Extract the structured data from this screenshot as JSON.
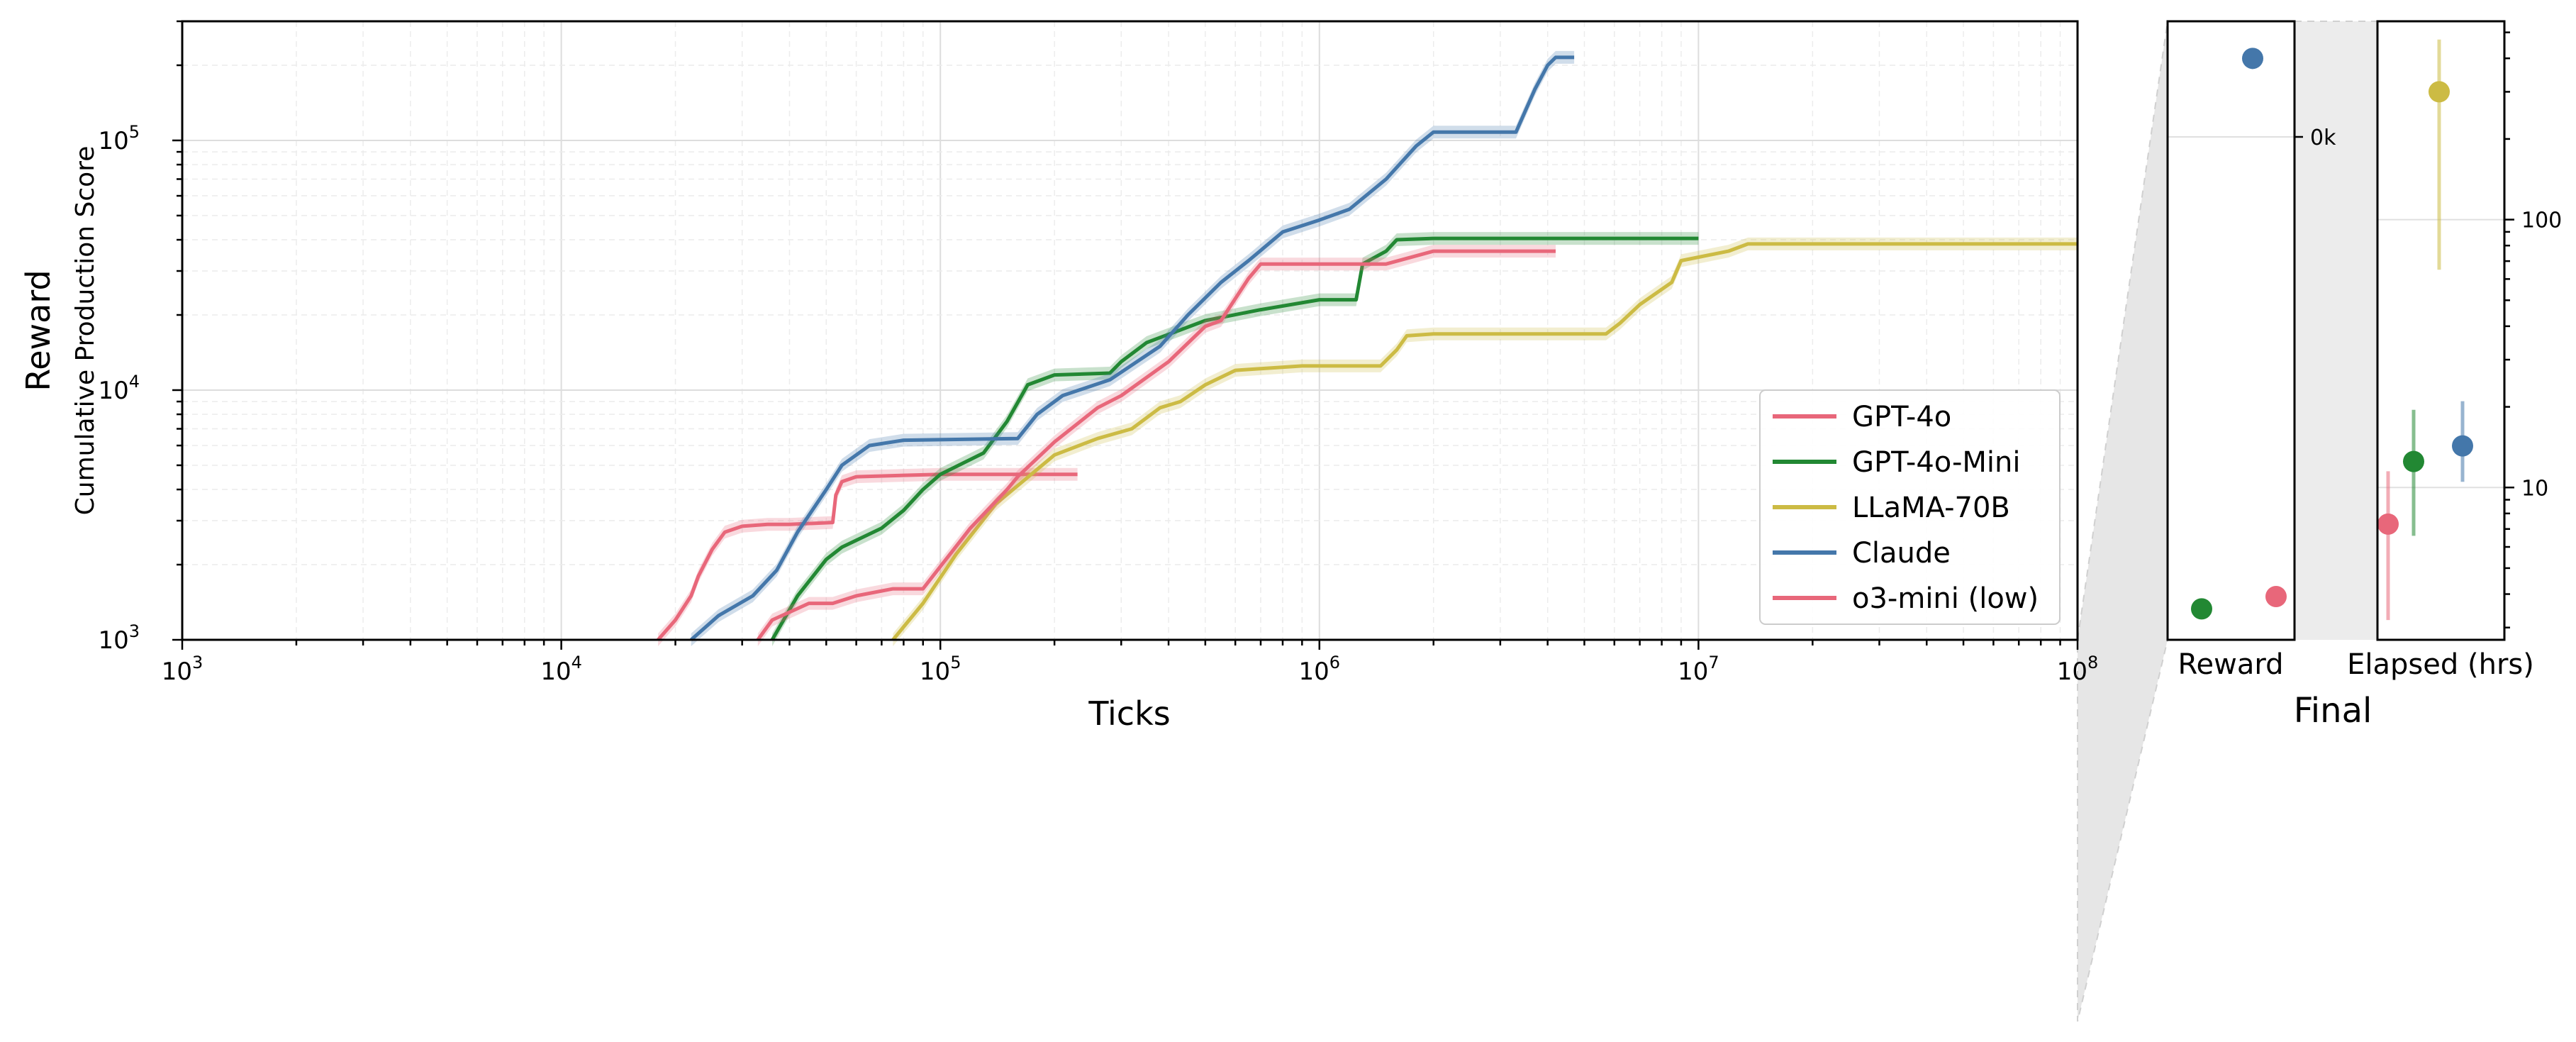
{
  "chart_data": [
    {
      "type": "line",
      "xlabel": "Ticks",
      "ylabel": "Reward",
      "ylabel_secondary": "Cumulative Production Score",
      "x_scale": "log",
      "y_scale": "log",
      "xlim": [
        1000,
        100000000
      ],
      "ylim": [
        1000,
        300000
      ],
      "x_tick_labels": [
        {
          "value": 1000,
          "base": "10",
          "exp": "3"
        },
        {
          "value": 10000,
          "base": "10",
          "exp": "4"
        },
        {
          "value": 100000,
          "base": "10",
          "exp": "5"
        },
        {
          "value": 1000000,
          "base": "10",
          "exp": "6"
        },
        {
          "value": 10000000,
          "base": "10",
          "exp": "7"
        },
        {
          "value": 100000000,
          "base": "10",
          "exp": "8"
        }
      ],
      "y_tick_labels": [
        {
          "value": 1000,
          "base": "10",
          "exp": "3"
        },
        {
          "value": 10000,
          "base": "10",
          "exp": "4"
        },
        {
          "value": 100000,
          "base": "10",
          "exp": "5"
        }
      ],
      "grid": true,
      "legend_position": "lower-right",
      "series": [
        {
          "name": "GPT-4o",
          "color": "#e8677a",
          "band": true,
          "points": [
            [
              18000,
              1000
            ],
            [
              20000,
              1200
            ],
            [
              22000,
              1500
            ],
            [
              23000,
              1800
            ],
            [
              25000,
              2300
            ],
            [
              27000,
              2700
            ],
            [
              30000,
              2850
            ],
            [
              35000,
              2900
            ],
            [
              40000,
              2900
            ],
            [
              52000,
              2950
            ],
            [
              53000,
              3800
            ],
            [
              55000,
              4300
            ],
            [
              60000,
              4500
            ],
            [
              100000,
              4600
            ],
            [
              230000,
              4600
            ]
          ]
        },
        {
          "name": "GPT-4o-Mini",
          "color": "#228833",
          "band": true,
          "points": [
            [
              36000,
              1000
            ],
            [
              42000,
              1500
            ],
            [
              50000,
              2100
            ],
            [
              55000,
              2350
            ],
            [
              70000,
              2800
            ],
            [
              80000,
              3300
            ],
            [
              90000,
              4000
            ],
            [
              100000,
              4600
            ],
            [
              130000,
              5600
            ],
            [
              150000,
              7500
            ],
            [
              170000,
              10500
            ],
            [
              200000,
              11500
            ],
            [
              280000,
              11700
            ],
            [
              300000,
              13000
            ],
            [
              350000,
              15500
            ],
            [
              500000,
              19000
            ],
            [
              700000,
              21000
            ],
            [
              1000000,
              23000
            ],
            [
              1250000,
              23000
            ],
            [
              1300000,
              32000
            ],
            [
              1500000,
              36000
            ],
            [
              1600000,
              40000
            ],
            [
              2000000,
              40500
            ],
            [
              10000000,
              40500
            ]
          ]
        },
        {
          "name": "LLaMA-70B",
          "color": "#ccbb44",
          "band": true,
          "points": [
            [
              75000,
              1000
            ],
            [
              90000,
              1400
            ],
            [
              110000,
              2200
            ],
            [
              140000,
              3500
            ],
            [
              200000,
              5500
            ],
            [
              260000,
              6400
            ],
            [
              320000,
              7000
            ],
            [
              380000,
              8500
            ],
            [
              430000,
              9000
            ],
            [
              500000,
              10500
            ],
            [
              600000,
              12000
            ],
            [
              900000,
              12500
            ],
            [
              1450000,
              12500
            ],
            [
              1600000,
              14500
            ],
            [
              1700000,
              16500
            ],
            [
              2000000,
              16800
            ],
            [
              5700000,
              16800
            ],
            [
              6200000,
              18500
            ],
            [
              7000000,
              22000
            ],
            [
              8500000,
              27000
            ],
            [
              9000000,
              33000
            ],
            [
              12000000,
              36000
            ],
            [
              13500000,
              38500
            ],
            [
              100000000,
              38500
            ]
          ]
        },
        {
          "name": "Claude",
          "color": "#4477aa",
          "band": true,
          "points": [
            [
              22000,
              1000
            ],
            [
              26000,
              1250
            ],
            [
              32000,
              1500
            ],
            [
              37000,
              1900
            ],
            [
              42000,
              2700
            ],
            [
              50000,
              4000
            ],
            [
              55000,
              5000
            ],
            [
              65000,
              6000
            ],
            [
              80000,
              6300
            ],
            [
              160000,
              6400
            ],
            [
              180000,
              8000
            ],
            [
              210000,
              9500
            ],
            [
              280000,
              11000
            ],
            [
              380000,
              15000
            ],
            [
              450000,
              20000
            ],
            [
              550000,
              27000
            ],
            [
              650000,
              33000
            ],
            [
              800000,
              43000
            ],
            [
              1000000,
              48000
            ],
            [
              1200000,
              53000
            ],
            [
              1500000,
              70000
            ],
            [
              1800000,
              95000
            ],
            [
              2000000,
              108000
            ],
            [
              3300000,
              108000
            ],
            [
              3700000,
              160000
            ],
            [
              4000000,
              200000
            ],
            [
              4200000,
              215000
            ],
            [
              4700000,
              215000
            ]
          ]
        },
        {
          "name": "o3-mini (low)",
          "color": "#e8677a",
          "band": true,
          "points": [
            [
              33000,
              1000
            ],
            [
              36000,
              1200
            ],
            [
              45000,
              1400
            ],
            [
              52000,
              1400
            ],
            [
              60000,
              1500
            ],
            [
              75000,
              1600
            ],
            [
              90000,
              1600
            ],
            [
              120000,
              2800
            ],
            [
              150000,
              4000
            ],
            [
              160000,
              4500
            ],
            [
              200000,
              6200
            ],
            [
              260000,
              8500
            ],
            [
              300000,
              9500
            ],
            [
              400000,
              13000
            ],
            [
              500000,
              18000
            ],
            [
              550000,
              19000
            ],
            [
              650000,
              28000
            ],
            [
              700000,
              32000
            ],
            [
              1500000,
              32000
            ],
            [
              2000000,
              36000
            ],
            [
              4200000,
              36000
            ]
          ]
        }
      ]
    },
    {
      "type": "scatter",
      "subplot": "Reward",
      "xlabel": "Reward",
      "y_tick_labels": [
        "0k"
      ],
      "points": [
        {
          "series": "Claude",
          "color": "#4477aa",
          "level": 0.94
        },
        {
          "series": "GPT-4o-Mini",
          "color": "#228833",
          "level": 0.05
        },
        {
          "series": "GPT-4o",
          "color": "#e8677a",
          "level": 0.07
        }
      ]
    },
    {
      "type": "scatter",
      "subplot": "Elapsed (hrs)",
      "xlabel": "Elapsed (hrs)",
      "y_scale": "log",
      "ylim": [
        2.7,
        550
      ],
      "y_tick_labels": [
        "100",
        "10"
      ],
      "points": [
        {
          "series": "GPT-4o",
          "color": "#e8677a",
          "value": 7.3,
          "err": [
            3.2,
            11.5
          ]
        },
        {
          "series": "GPT-4o-Mini",
          "color": "#228833",
          "value": 12.5,
          "err": [
            6.6,
            19.5
          ]
        },
        {
          "series": "LLaMA-70B",
          "color": "#ccbb44",
          "value": 300,
          "err": [
            65,
            470
          ]
        },
        {
          "series": "Claude",
          "color": "#4477aa",
          "value": 14.3,
          "err": [
            10.5,
            21
          ]
        }
      ]
    }
  ],
  "group_label": "Final"
}
